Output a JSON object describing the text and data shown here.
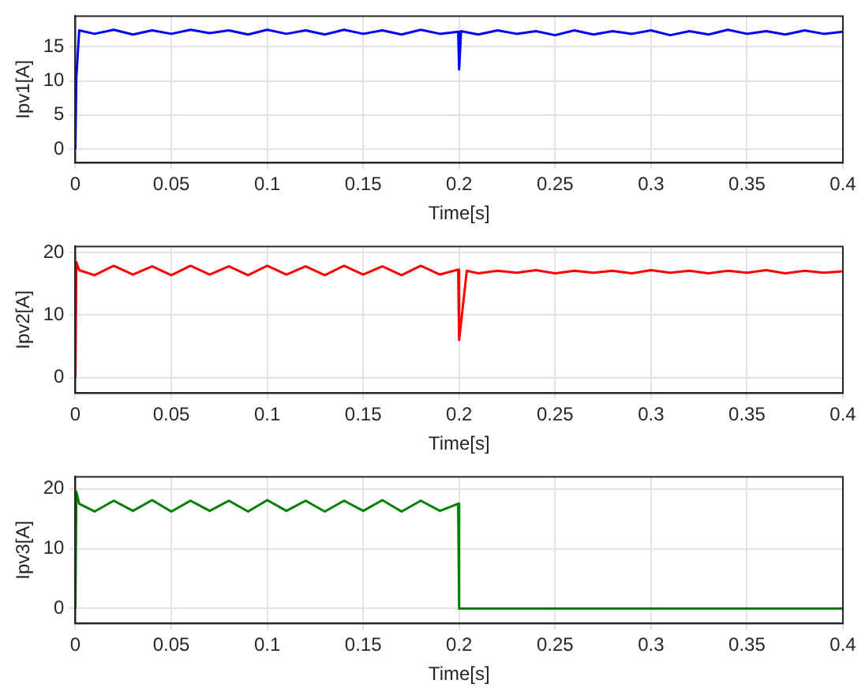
{
  "chart_data": [
    {
      "type": "line",
      "xlabel": "Time[s]",
      "ylabel": "Ipv1[A]",
      "xlim": [
        0,
        0.4
      ],
      "xticks": [
        0,
        0.05,
        0.1,
        0.15,
        0.2,
        0.25,
        0.3,
        0.35,
        0.4
      ],
      "ylim": [
        -2,
        19.5
      ],
      "yticks": [
        0,
        5,
        10,
        15
      ],
      "grid": true,
      "x": [
        0,
        0.0005,
        0.002,
        0.01,
        0.02,
        0.03,
        0.04,
        0.05,
        0.06,
        0.07,
        0.08,
        0.09,
        0.1,
        0.11,
        0.12,
        0.13,
        0.14,
        0.15,
        0.16,
        0.17,
        0.18,
        0.19,
        0.1995,
        0.2,
        0.201,
        0.21,
        0.22,
        0.23,
        0.24,
        0.25,
        0.26,
        0.27,
        0.28,
        0.29,
        0.3,
        0.31,
        0.32,
        0.33,
        0.34,
        0.35,
        0.36,
        0.37,
        0.38,
        0.39,
        0.4
      ],
      "series": [
        {
          "color": "#0000ff",
          "values": [
            0,
            10.5,
            17.4,
            16.9,
            17.5,
            16.8,
            17.4,
            16.9,
            17.5,
            17,
            17.4,
            16.8,
            17.5,
            16.9,
            17.4,
            16.8,
            17.5,
            16.9,
            17.4,
            16.8,
            17.5,
            16.9,
            17.2,
            11.7,
            17.3,
            16.8,
            17.4,
            16.9,
            17.3,
            16.7,
            17.4,
            16.8,
            17.3,
            16.9,
            17.4,
            16.7,
            17.3,
            16.8,
            17.5,
            16.9,
            17.3,
            16.8,
            17.4,
            16.9,
            17.2
          ]
        }
      ]
    },
    {
      "type": "line",
      "xlabel": "Time[s]",
      "ylabel": "Ipv2[A]",
      "xlim": [
        0,
        0.4
      ],
      "xticks": [
        0,
        0.05,
        0.1,
        0.15,
        0.2,
        0.25,
        0.3,
        0.35,
        0.4
      ],
      "ylim": [
        -2.5,
        21
      ],
      "yticks": [
        0,
        10,
        20
      ],
      "grid": true,
      "x": [
        0,
        0.0005,
        0.002,
        0.01,
        0.02,
        0.03,
        0.04,
        0.05,
        0.06,
        0.07,
        0.08,
        0.09,
        0.1,
        0.11,
        0.12,
        0.13,
        0.14,
        0.15,
        0.16,
        0.17,
        0.18,
        0.19,
        0.1995,
        0.2,
        0.204,
        0.21,
        0.22,
        0.23,
        0.24,
        0.25,
        0.26,
        0.27,
        0.28,
        0.29,
        0.3,
        0.31,
        0.32,
        0.33,
        0.34,
        0.35,
        0.36,
        0.37,
        0.38,
        0.39,
        0.4
      ],
      "series": [
        {
          "color": "#ff0000",
          "values": [
            0,
            18.5,
            17.2,
            16.4,
            17.9,
            16.5,
            17.8,
            16.4,
            17.9,
            16.5,
            17.8,
            16.4,
            17.9,
            16.5,
            17.8,
            16.4,
            17.9,
            16.5,
            17.8,
            16.4,
            17.9,
            16.5,
            17.3,
            6,
            17.1,
            16.7,
            17.1,
            16.8,
            17.2,
            16.7,
            17.1,
            16.8,
            17.1,
            16.7,
            17.2,
            16.8,
            17.1,
            16.7,
            17.1,
            16.8,
            17.2,
            16.7,
            17.1,
            16.8,
            17
          ]
        }
      ]
    },
    {
      "type": "line",
      "xlabel": "Time[s]",
      "ylabel": "Ipv3[A]",
      "xlim": [
        0,
        0.4
      ],
      "xticks": [
        0,
        0.05,
        0.1,
        0.15,
        0.2,
        0.25,
        0.3,
        0.35,
        0.4
      ],
      "ylim": [
        -2.5,
        22
      ],
      "yticks": [
        0,
        10,
        20
      ],
      "grid": true,
      "x": [
        0,
        0.0005,
        0.002,
        0.01,
        0.02,
        0.03,
        0.04,
        0.05,
        0.06,
        0.07,
        0.08,
        0.09,
        0.1,
        0.11,
        0.12,
        0.13,
        0.14,
        0.15,
        0.16,
        0.17,
        0.18,
        0.19,
        0.1995,
        0.2,
        0.4
      ],
      "series": [
        {
          "color": "#008000",
          "values": [
            0,
            19.5,
            17.5,
            16.2,
            18,
            16.3,
            18.1,
            16.2,
            18,
            16.3,
            18,
            16.2,
            18.1,
            16.3,
            18,
            16.2,
            18,
            16.3,
            18.1,
            16.2,
            18,
            16.3,
            17.5,
            0,
            0
          ]
        }
      ]
    }
  ]
}
